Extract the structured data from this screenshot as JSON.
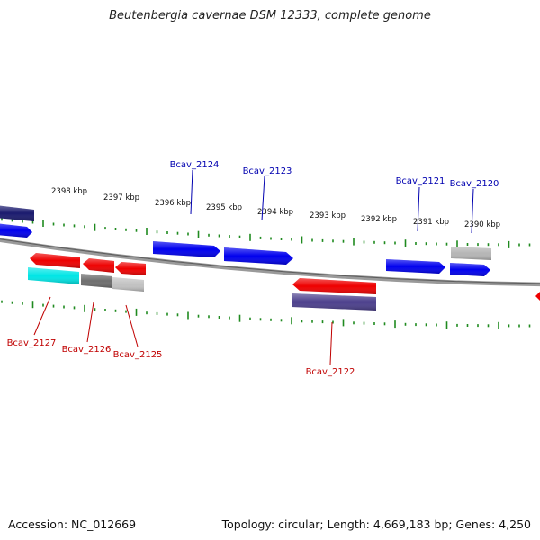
{
  "title": "Beutenbergia cavernae DSM 12333, complete genome",
  "footer": {
    "accession": "Accession: NC_012669",
    "info": "Topology: circular; Length: 4,669,183 bp; Genes: 4,250"
  },
  "colors": {
    "backbone": "#7a7a7a",
    "tick": "#1f8a1f",
    "forward_label": "#0000b0",
    "reverse_label": "#c00000"
  },
  "kbp_labels": [
    "2398 kbp",
    "2397 kbp",
    "2396 kbp",
    "2395 kbp",
    "2394 kbp",
    "2393 kbp",
    "2392 kbp",
    "2391 kbp",
    "2390 kbp"
  ],
  "genes": {
    "forward": [
      {
        "color": "#1a1a6e"
      },
      {
        "color": "#0000ee"
      },
      {
        "color": "#0000ee",
        "label": "Bcav_2124"
      },
      {
        "color": "#0000ee",
        "label": "Bcav_2123"
      },
      {
        "color": "#0000ee",
        "label": "Bcav_2121"
      },
      {
        "color": "#0000ee"
      },
      {
        "color": "#b5b5b5",
        "label": "Bcav_2120"
      }
    ],
    "reverse": [
      {
        "color": "#ee0000"
      },
      {
        "color": "#ee0000"
      },
      {
        "color": "#ee0000"
      },
      {
        "color": "#00e5e5",
        "label": "Bcav_2127"
      },
      {
        "color": "#6e6e6e",
        "label": "Bcav_2126"
      },
      {
        "color": "#c2c2c2",
        "label": "Bcav_2125"
      },
      {
        "color": "#ee0000"
      },
      {
        "color": "#4b3f8c",
        "label": "Bcav_2122"
      },
      {
        "color": "#ee0000"
      }
    ]
  }
}
